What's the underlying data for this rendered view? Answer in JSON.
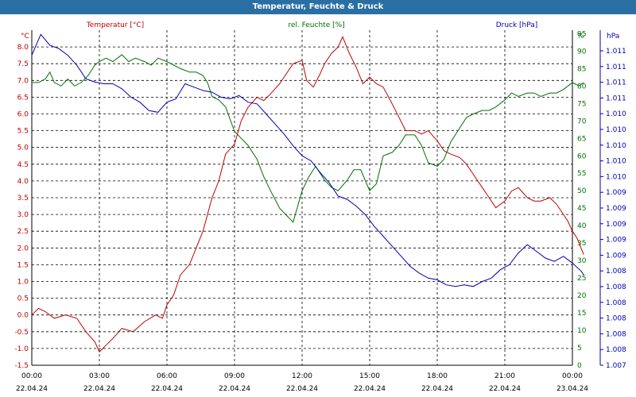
{
  "window": {
    "title": "Temperatur, Feuchte & Druck"
  },
  "colors": {
    "temperature": "#c00000",
    "humidity": "#007000",
    "pressure": "#0000b0",
    "grid": "#000000",
    "titlebar": "#2a6fa3"
  },
  "chart_data": {
    "type": "line",
    "title": "Temperatur, Feuchte & Druck",
    "grid": true,
    "x": {
      "ticks": [
        {
          "time": "00:00",
          "date": "22.04.24"
        },
        {
          "time": "03:00",
          "date": "22.04.24"
        },
        {
          "time": "06:00",
          "date": "22.04.24"
        },
        {
          "time": "09:00",
          "date": "22.04.24"
        },
        {
          "time": "12:00",
          "date": "22.04.24"
        },
        {
          "time": "15:00",
          "date": "22.04.24"
        },
        {
          "time": "18:00",
          "date": "22.04.24"
        },
        {
          "time": "21:00",
          "date": "22.04.24"
        },
        {
          "time": "00:00",
          "date": "23.04.24"
        }
      ]
    },
    "axes": {
      "temperature": {
        "legend": "Temperatur [°C]",
        "unit": "°C",
        "position": "left",
        "range": [
          -1.5,
          8.5
        ],
        "ticks": [
          "-1.5",
          "-1.0",
          "-0.5",
          "0.0",
          "0.5",
          "1.0",
          "1.5",
          "2.0",
          "2.5",
          "3.0",
          "3.5",
          "4.0",
          "4.5",
          "5.0",
          "5.5",
          "6.0",
          "6.5",
          "7.0",
          "7.5",
          "8.0"
        ]
      },
      "humidity": {
        "legend": "rel. Feuchte [%]",
        "unit": "%",
        "position": "right",
        "range": [
          0,
          96
        ],
        "ticks": [
          "0",
          "5",
          "10",
          "15",
          "20",
          "25",
          "30",
          "35",
          "40",
          "45",
          "50",
          "55",
          "60",
          "65",
          "70",
          "75",
          "80",
          "85",
          "90",
          "95"
        ]
      },
      "pressure": {
        "legend": "Druck [hPa]",
        "unit": "hPa",
        "position": "far-right",
        "range": [
          1.007,
          1.011
        ],
        "ticks": [
          "1.007",
          "1.008",
          "1.008",
          "1.008",
          "1.008",
          "1.008",
          "1.008",
          "1.009",
          "1.009",
          "1.009",
          "1.009",
          "1.009",
          "1.010",
          "1.010",
          "1.010",
          "1.010",
          "1.010",
          "1.011",
          "1.011",
          "1.011",
          "1.011"
        ]
      }
    },
    "series": [
      {
        "name": "Temperatur [°C]",
        "axis": "temperature",
        "values": [
          [
            0.0,
            0.0
          ],
          [
            0.3,
            0.2
          ],
          [
            0.6,
            0.1
          ],
          [
            1.0,
            -0.1
          ],
          [
            1.5,
            0.0
          ],
          [
            2.0,
            -0.1
          ],
          [
            2.4,
            -0.5
          ],
          [
            2.8,
            -0.8
          ],
          [
            3.0,
            -1.1
          ],
          [
            3.3,
            -0.9
          ],
          [
            3.6,
            -0.7
          ],
          [
            4.0,
            -0.4
          ],
          [
            4.5,
            -0.5
          ],
          [
            5.0,
            -0.2
          ],
          [
            5.5,
            0.0
          ],
          [
            5.8,
            -0.1
          ],
          [
            6.0,
            0.3
          ],
          [
            6.3,
            0.6
          ],
          [
            6.6,
            1.2
          ],
          [
            7.0,
            1.5
          ],
          [
            7.3,
            2.0
          ],
          [
            7.6,
            2.5
          ],
          [
            8.0,
            3.5
          ],
          [
            8.3,
            4.0
          ],
          [
            8.6,
            4.8
          ],
          [
            9.0,
            5.1
          ],
          [
            9.3,
            5.8
          ],
          [
            9.6,
            6.2
          ],
          [
            10.0,
            6.5
          ],
          [
            10.3,
            6.4
          ],
          [
            10.6,
            6.6
          ],
          [
            11.0,
            6.9
          ],
          [
            11.3,
            7.2
          ],
          [
            11.6,
            7.5
          ],
          [
            12.0,
            7.6
          ],
          [
            12.2,
            7.0
          ],
          [
            12.5,
            6.8
          ],
          [
            12.8,
            7.2
          ],
          [
            13.0,
            7.5
          ],
          [
            13.3,
            7.8
          ],
          [
            13.6,
            8.0
          ],
          [
            13.8,
            8.3
          ],
          [
            14.1,
            7.8
          ],
          [
            14.4,
            7.4
          ],
          [
            14.7,
            6.9
          ],
          [
            15.0,
            7.1
          ],
          [
            15.3,
            6.9
          ],
          [
            15.6,
            6.8
          ],
          [
            16.0,
            6.3
          ],
          [
            16.3,
            5.9
          ],
          [
            16.6,
            5.5
          ],
          [
            17.0,
            5.5
          ],
          [
            17.3,
            5.4
          ],
          [
            17.6,
            5.5
          ],
          [
            18.0,
            5.2
          ],
          [
            18.3,
            4.9
          ],
          [
            18.6,
            4.8
          ],
          [
            19.0,
            4.7
          ],
          [
            19.3,
            4.5
          ],
          [
            19.6,
            4.2
          ],
          [
            20.0,
            3.8
          ],
          [
            20.3,
            3.5
          ],
          [
            20.6,
            3.2
          ],
          [
            21.0,
            3.4
          ],
          [
            21.3,
            3.7
          ],
          [
            21.6,
            3.8
          ],
          [
            22.0,
            3.5
          ],
          [
            22.3,
            3.4
          ],
          [
            22.6,
            3.4
          ],
          [
            23.0,
            3.5
          ],
          [
            23.3,
            3.3
          ],
          [
            23.6,
            3.0
          ],
          [
            23.8,
            2.8
          ],
          [
            24.0,
            2.5
          ],
          [
            24.2,
            2.3
          ],
          [
            24.5,
            1.8
          ]
        ]
      },
      {
        "name": "rel. Feuchte [%]",
        "axis": "humidity",
        "values": [
          [
            0.0,
            81
          ],
          [
            0.3,
            81
          ],
          [
            0.6,
            82
          ],
          [
            0.8,
            84
          ],
          [
            1.0,
            81
          ],
          [
            1.3,
            80
          ],
          [
            1.6,
            82
          ],
          [
            1.9,
            80
          ],
          [
            2.2,
            81
          ],
          [
            2.5,
            83
          ],
          [
            2.8,
            86
          ],
          [
            3.0,
            87
          ],
          [
            3.3,
            88
          ],
          [
            3.6,
            87
          ],
          [
            4.0,
            89
          ],
          [
            4.3,
            87
          ],
          [
            4.6,
            88
          ],
          [
            5.0,
            87
          ],
          [
            5.3,
            86
          ],
          [
            5.6,
            88
          ],
          [
            6.0,
            87
          ],
          [
            6.3,
            86
          ],
          [
            6.6,
            85
          ],
          [
            7.0,
            84
          ],
          [
            7.3,
            84
          ],
          [
            7.6,
            83
          ],
          [
            7.8,
            81
          ],
          [
            8.0,
            77
          ],
          [
            8.3,
            76
          ],
          [
            8.6,
            74
          ],
          [
            9.0,
            67
          ],
          [
            9.3,
            65
          ],
          [
            9.6,
            63
          ],
          [
            10.0,
            59
          ],
          [
            10.3,
            54
          ],
          [
            10.6,
            50
          ],
          [
            11.0,
            45
          ],
          [
            11.3,
            43
          ],
          [
            11.6,
            41
          ],
          [
            12.0,
            50
          ],
          [
            12.3,
            54
          ],
          [
            12.6,
            57
          ],
          [
            13.0,
            53
          ],
          [
            13.3,
            51
          ],
          [
            13.6,
            50
          ],
          [
            14.0,
            53
          ],
          [
            14.3,
            56
          ],
          [
            14.6,
            56
          ],
          [
            15.0,
            50
          ],
          [
            15.3,
            52
          ],
          [
            15.6,
            60
          ],
          [
            16.0,
            61
          ],
          [
            16.3,
            63
          ],
          [
            16.6,
            66
          ],
          [
            17.0,
            66
          ],
          [
            17.3,
            63
          ],
          [
            17.6,
            58
          ],
          [
            18.0,
            57
          ],
          [
            18.3,
            59
          ],
          [
            18.6,
            64
          ],
          [
            19.0,
            68
          ],
          [
            19.3,
            71
          ],
          [
            19.6,
            72
          ],
          [
            20.0,
            73
          ],
          [
            20.3,
            73
          ],
          [
            20.6,
            74
          ],
          [
            21.0,
            76
          ],
          [
            21.3,
            78
          ],
          [
            21.6,
            77
          ],
          [
            22.0,
            78
          ],
          [
            22.3,
            78
          ],
          [
            22.6,
            77
          ],
          [
            23.0,
            78
          ],
          [
            23.3,
            78
          ],
          [
            23.6,
            79
          ],
          [
            23.8,
            80
          ],
          [
            24.0,
            81
          ],
          [
            24.3,
            80
          ],
          [
            24.5,
            81
          ]
        ]
      },
      {
        "name": "Druck [hPa]",
        "axis": "pressure",
        "values": [
          [
            0.0,
            1.0107
          ],
          [
            0.4,
            1.01095
          ],
          [
            0.8,
            1.01082
          ],
          [
            1.2,
            1.01078
          ],
          [
            1.6,
            1.0107
          ],
          [
            2.0,
            1.01058
          ],
          [
            2.4,
            1.01042
          ],
          [
            2.8,
            1.01038
          ],
          [
            3.2,
            1.01036
          ],
          [
            3.6,
            1.01036
          ],
          [
            4.0,
            1.0103
          ],
          [
            4.4,
            1.0102
          ],
          [
            4.8,
            1.01014
          ],
          [
            5.2,
            1.01004
          ],
          [
            5.6,
            1.01002
          ],
          [
            6.0,
            1.01014
          ],
          [
            6.4,
            1.01018
          ],
          [
            6.8,
            1.01036
          ],
          [
            7.2,
            1.01032
          ],
          [
            7.6,
            1.01028
          ],
          [
            8.0,
            1.01026
          ],
          [
            8.4,
            1.0102
          ],
          [
            8.8,
            1.01018
          ],
          [
            9.2,
            1.01022
          ],
          [
            9.6,
            1.01014
          ],
          [
            10.0,
            1.01012
          ],
          [
            10.4,
            1.01
          ],
          [
            10.8,
            1.00988
          ],
          [
            11.2,
            1.00976
          ],
          [
            11.6,
            1.00962
          ],
          [
            12.0,
            1.0095
          ],
          [
            12.4,
            1.00944
          ],
          [
            12.8,
            1.0093
          ],
          [
            13.2,
            1.00918
          ],
          [
            13.6,
            1.00902
          ],
          [
            14.0,
            1.00898
          ],
          [
            14.4,
            1.0089
          ],
          [
            14.8,
            1.0088
          ],
          [
            15.2,
            1.00866
          ],
          [
            15.6,
            1.00854
          ],
          [
            16.0,
            1.00842
          ],
          [
            16.4,
            1.0083
          ],
          [
            16.8,
            1.00818
          ],
          [
            17.2,
            1.0081
          ],
          [
            17.6,
            1.00804
          ],
          [
            18.0,
            1.00802
          ],
          [
            18.4,
            1.00796
          ],
          [
            18.8,
            1.00794
          ],
          [
            19.2,
            1.00796
          ],
          [
            19.6,
            1.00794
          ],
          [
            20.0,
            1.008
          ],
          [
            20.4,
            1.00804
          ],
          [
            20.8,
            1.00814
          ],
          [
            21.2,
            1.0082
          ],
          [
            21.6,
            1.00834
          ],
          [
            22.0,
            1.00844
          ],
          [
            22.4,
            1.00836
          ],
          [
            22.8,
            1.00828
          ],
          [
            23.2,
            1.00824
          ],
          [
            23.6,
            1.0083
          ],
          [
            24.0,
            1.00822
          ],
          [
            24.4,
            1.00812
          ],
          [
            24.5,
            1.00808
          ]
        ]
      }
    ]
  }
}
